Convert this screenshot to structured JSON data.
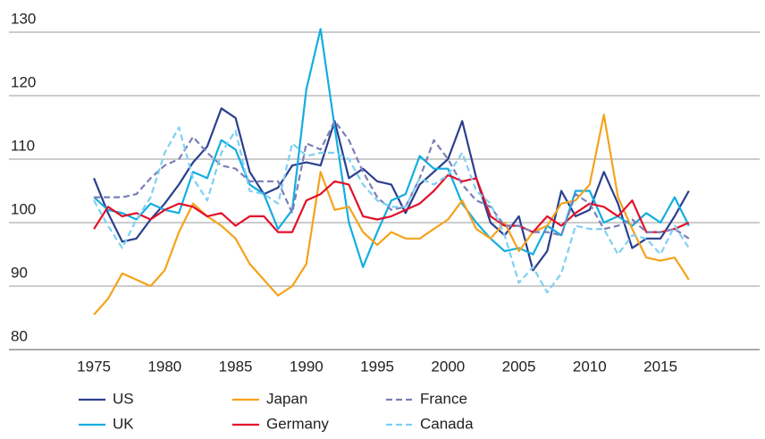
{
  "chart_data": {
    "type": "line",
    "x": [
      1975,
      1976,
      1977,
      1978,
      1979,
      1980,
      1981,
      1982,
      1983,
      1984,
      1985,
      1986,
      1987,
      1988,
      1989,
      1990,
      1991,
      1992,
      1993,
      1994,
      1995,
      1996,
      1997,
      1998,
      1999,
      2000,
      2001,
      2002,
      2003,
      2004,
      2005,
      2006,
      2007,
      2008,
      2009,
      2010,
      2011,
      2012,
      2013,
      2014,
      2015,
      2016,
      2017
    ],
    "xlim": [
      1969,
      2022
    ],
    "xticks": [
      1975,
      1980,
      1985,
      1990,
      1995,
      2000,
      2005,
      2010,
      2015
    ],
    "ylim": [
      80,
      130
    ],
    "yticks": [
      80,
      90,
      100,
      110,
      120,
      130
    ],
    "grid": true,
    "series": [
      {
        "name": "US",
        "color": "#2b3f8e",
        "style": "solid",
        "values": [
          107,
          101.5,
          97,
          97.5,
          100.5,
          103,
          106,
          109.5,
          112,
          118,
          116.5,
          108,
          104.5,
          105.5,
          109,
          109.5,
          109,
          116,
          107,
          108.5,
          106.5,
          106,
          101.5,
          106,
          108,
          110,
          116,
          107,
          100,
          98,
          101,
          92.5,
          95.5,
          105,
          101,
          102,
          108,
          103,
          96,
          97.5,
          97.5,
          101,
          105
        ]
      },
      {
        "name": "UK",
        "color": "#12aee0",
        "style": "solid",
        "values": [
          104,
          102,
          101.5,
          100.5,
          103,
          102,
          101.5,
          108,
          107,
          113,
          111.5,
          106,
          104.5,
          99,
          102,
          121,
          130.5,
          115,
          100,
          93,
          98.5,
          103.5,
          104.5,
          110.5,
          108.5,
          108.5,
          103,
          100,
          97.5,
          95.5,
          96,
          95,
          99.5,
          98,
          105,
          105,
          100,
          101,
          99.5,
          101.5,
          100,
          104,
          99.5
        ]
      },
      {
        "name": "Japan",
        "color": "#f5a31a",
        "style": "solid",
        "values": [
          85.5,
          88,
          92,
          91,
          90,
          92.5,
          98.5,
          103,
          101,
          99.5,
          97.5,
          93.5,
          91,
          88.5,
          90,
          93.5,
          108,
          102,
          102.5,
          98.5,
          96.5,
          98.5,
          97.5,
          97.5,
          99,
          100.5,
          103.5,
          99,
          97.5,
          100,
          95.5,
          98.5,
          99.5,
          103,
          103.5,
          106,
          117,
          104,
          99,
          94.5,
          94,
          94.5,
          91
        ]
      },
      {
        "name": "Germany",
        "color": "#e3102a",
        "style": "solid",
        "values": [
          99,
          102.5,
          101,
          101.5,
          100.5,
          102,
          103,
          102.5,
          101,
          101.5,
          99.5,
          101,
          101,
          98.5,
          98.5,
          103.5,
          104.5,
          106.5,
          106,
          101,
          100.5,
          101,
          102,
          103,
          105,
          107.5,
          106.5,
          107,
          101,
          99.5,
          99.5,
          98.5,
          101,
          99.5,
          101.5,
          103,
          102.5,
          101,
          103.5,
          98.5,
          98.5,
          99,
          100
        ]
      },
      {
        "name": "France",
        "color": "#7a7fb8",
        "style": "dashed",
        "values": [
          104,
          104,
          104,
          104.5,
          107,
          109,
          110,
          113.5,
          111,
          109,
          108.5,
          106.5,
          106.5,
          106.5,
          101.5,
          112.5,
          111.5,
          116,
          113,
          108,
          104,
          102,
          102.5,
          107,
          113,
          110,
          106,
          103.5,
          102.5,
          99.5,
          99.5,
          98.5,
          98.5,
          98,
          104.5,
          103,
          99,
          99.5,
          100.5,
          98.5,
          98.5,
          99,
          97.5
        ]
      },
      {
        "name": "Canada",
        "color": "#7fd0f2",
        "style": "dashed",
        "values": [
          103.5,
          99.5,
          96,
          100.5,
          104,
          111,
          115,
          107,
          103.5,
          111,
          114.5,
          105,
          104.5,
          103,
          112.5,
          110.5,
          111,
          111,
          110,
          106,
          103.5,
          102.5,
          102.5,
          107,
          106,
          107.5,
          111,
          105,
          103,
          98,
          90.5,
          93,
          89,
          92,
          99.5,
          99,
          99,
          95,
          98,
          97.5,
          95,
          99.5,
          96
        ]
      }
    ]
  }
}
